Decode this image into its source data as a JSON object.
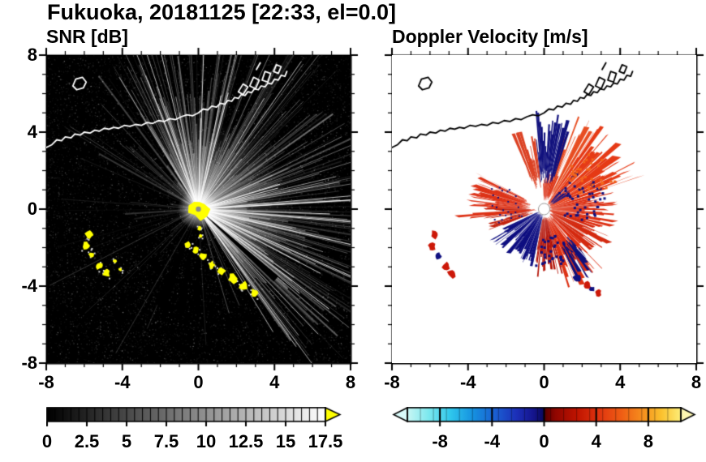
{
  "title": "Fukuoka, 20181125 [22:33, el=0.0]",
  "panels": {
    "snr": {
      "title": "SNR [dB]"
    },
    "doppler": {
      "title": "Doppler Velocity [m/s]"
    }
  },
  "axes": {
    "xlim": [
      -8,
      8
    ],
    "ylim": [
      -8,
      8
    ],
    "xtick_values": [
      -8,
      -4,
      0,
      4,
      8
    ],
    "xtick_labels": [
      "-8",
      "-4",
      "0",
      "4",
      "8"
    ],
    "ytick_values": [
      8,
      4,
      0,
      -4,
      -8
    ],
    "ytick_labels": [
      "8",
      "4",
      "0",
      "-4",
      "-8"
    ],
    "minor_tick_step": 1
  },
  "colorbars": {
    "snr": {
      "min": 0,
      "max": 17.5,
      "minor_step": 0.5,
      "tick_values": [
        0,
        2.5,
        5,
        7.5,
        10,
        12.5,
        15,
        17.5
      ],
      "tick_labels": [
        "0",
        "2.5",
        "5",
        "7.5",
        "10",
        "12.5",
        "15",
        "17.5"
      ],
      "colormap": [
        [
          0,
          "#000000"
        ],
        [
          1,
          "#ffffff"
        ]
      ],
      "arrow_color": "#ffff00"
    },
    "doppler": {
      "min": -10.5,
      "max": 10.5,
      "minor_step": 1,
      "tick_values": [
        -8,
        -4,
        0,
        4,
        8
      ],
      "tick_labels": [
        "-8",
        "-4",
        "0",
        "4",
        "8"
      ],
      "colormap": [
        [
          0,
          "#c9f6f4"
        ],
        [
          0.08,
          "#7ae8ee"
        ],
        [
          0.16,
          "#2ec6ec"
        ],
        [
          0.24,
          "#1691e0"
        ],
        [
          0.33,
          "#1b5ad0"
        ],
        [
          0.4,
          "#1c2fb8"
        ],
        [
          0.46,
          "#15158e"
        ],
        [
          0.495,
          "#0b0b62"
        ],
        [
          0.505,
          "#5d0000"
        ],
        [
          0.54,
          "#8f0600"
        ],
        [
          0.62,
          "#c01400"
        ],
        [
          0.7,
          "#e03510"
        ],
        [
          0.78,
          "#ef5c14"
        ],
        [
          0.86,
          "#f68f1e"
        ],
        [
          0.93,
          "#fbc22e"
        ],
        [
          1,
          "#fdee7a"
        ]
      ],
      "arrow_left_color": "#d9fbfa",
      "arrow_right_color": "#fdf6b0"
    }
  },
  "coastline": {
    "main": [
      [
        -8,
        3.2
      ],
      [
        -7.7,
        3.35
      ],
      [
        -7.45,
        3.6
      ],
      [
        -7.2,
        3.55
      ],
      [
        -7.0,
        3.75
      ],
      [
        -6.7,
        3.7
      ],
      [
        -6.5,
        3.9
      ],
      [
        -6.2,
        3.85
      ],
      [
        -6.0,
        4.0
      ],
      [
        -5.7,
        3.95
      ],
      [
        -5.45,
        4.1
      ],
      [
        -5.2,
        4.05
      ],
      [
        -4.95,
        4.2
      ],
      [
        -4.7,
        4.15
      ],
      [
        -4.45,
        4.25
      ],
      [
        -4.2,
        4.2
      ],
      [
        -3.9,
        4.35
      ],
      [
        -3.6,
        4.3
      ],
      [
        -3.3,
        4.4
      ],
      [
        -3.0,
        4.35
      ],
      [
        -2.7,
        4.5
      ],
      [
        -2.4,
        4.45
      ],
      [
        -2.1,
        4.6
      ],
      [
        -1.8,
        4.55
      ],
      [
        -1.5,
        4.7
      ],
      [
        -1.2,
        4.65
      ],
      [
        -0.9,
        4.8
      ],
      [
        -0.6,
        4.9
      ],
      [
        -0.3,
        4.85
      ],
      [
        0.0,
        5.0
      ],
      [
        0.25,
        5.2
      ],
      [
        0.5,
        5.15
      ],
      [
        0.7,
        5.35
      ],
      [
        0.95,
        5.3
      ],
      [
        1.15,
        5.5
      ],
      [
        1.4,
        5.45
      ],
      [
        1.55,
        5.65
      ],
      [
        1.75,
        5.6
      ],
      [
        1.9,
        5.8
      ],
      [
        2.1,
        5.75
      ],
      [
        2.25,
        5.95
      ],
      [
        2.45,
        5.9
      ],
      [
        2.6,
        6.1
      ],
      [
        2.8,
        6.05
      ],
      [
        2.95,
        6.25
      ],
      [
        3.15,
        6.2
      ],
      [
        3.3,
        6.4
      ],
      [
        3.5,
        6.35
      ],
      [
        3.65,
        6.55
      ],
      [
        3.85,
        6.5
      ],
      [
        4.0,
        6.75
      ],
      [
        4.2,
        6.7
      ],
      [
        4.35,
        6.95
      ],
      [
        4.55,
        6.9
      ],
      [
        4.65,
        7.15
      ]
    ],
    "piers": [
      [
        [
          2.1,
          6.1
        ],
        [
          2.35,
          6.5
        ],
        [
          2.6,
          6.35
        ],
        [
          2.35,
          5.95
        ]
      ],
      [
        [
          2.7,
          6.4
        ],
        [
          2.9,
          6.85
        ],
        [
          3.2,
          6.7
        ],
        [
          3.0,
          6.25
        ]
      ],
      [
        [
          3.35,
          6.7
        ],
        [
          3.5,
          7.15
        ],
        [
          3.8,
          7.05
        ],
        [
          3.65,
          6.6
        ]
      ],
      [
        [
          3.95,
          7.15
        ],
        [
          4.1,
          7.5
        ],
        [
          4.35,
          7.4
        ],
        [
          4.2,
          7.05
        ]
      ]
    ],
    "breakwater": [
      [
        3.05,
        7.25
      ],
      [
        3.25,
        7.6
      ]
    ],
    "island": [
      [
        -6.6,
        6.4
      ],
      [
        -6.45,
        6.75
      ],
      [
        -6.1,
        6.85
      ],
      [
        -5.9,
        6.6
      ],
      [
        -6.05,
        6.3
      ],
      [
        -6.4,
        6.2
      ]
    ]
  },
  "chart_data": [
    {
      "type": "heatmap",
      "title": "SNR [dB]",
      "xlabel": "",
      "ylabel": "",
      "xlim": [
        -8,
        8
      ],
      "ylim": [
        -8,
        8
      ],
      "value_range": [
        0,
        17.5
      ],
      "background": "#000000",
      "radar_center": [
        0,
        0
      ],
      "spoke_zones": [
        {
          "a0": -55,
          "a1": 122,
          "step": 0.7,
          "p": 1.0,
          "alpha": [
            0.06,
            0.42
          ],
          "len": [
            0.22,
            1.0
          ]
        },
        {
          "a0": 122,
          "a1": 155,
          "step": 1.2,
          "p": 0.75,
          "alpha": [
            0.05,
            0.28
          ],
          "len": [
            0.15,
            0.8
          ]
        },
        {
          "a0": 155,
          "a1": 205,
          "step": 1.6,
          "p": 0.5,
          "alpha": [
            0.04,
            0.2
          ],
          "len": [
            0.12,
            0.7
          ]
        },
        {
          "a0": 205,
          "a1": 305,
          "step": 2.2,
          "p": 0.28,
          "alpha": [
            0.05,
            0.3
          ],
          "len": [
            0.15,
            0.8
          ]
        },
        {
          "a0": 305,
          "a1": 360,
          "step": 1.0,
          "p": 0.8,
          "alpha": [
            0.05,
            0.3
          ],
          "len": [
            0.15,
            0.85
          ]
        }
      ],
      "bright_rays": [
        {
          "a0": -55,
          "a1": 122,
          "count": 60,
          "alpha": [
            0.35,
            0.95
          ],
          "len": [
            0.3,
            1.0
          ]
        },
        {
          "a0": 300,
          "a1": 350,
          "count": 10,
          "alpha": [
            0.3,
            0.65
          ],
          "len": [
            0.25,
            0.8
          ]
        }
      ],
      "shadow_wedges": [
        [
          246,
          252
        ],
        [
          258,
          262
        ],
        [
          268,
          271
        ],
        [
          316,
          320
        ]
      ],
      "clutter_color": "#ffff00",
      "clutter_blobs": [
        {
          "x": -0.55,
          "y": -1.85,
          "r": 0.16
        },
        {
          "x": -0.15,
          "y": -2.15,
          "r": 0.18
        },
        {
          "x": 0.25,
          "y": -2.5,
          "r": 0.2
        },
        {
          "x": 0.7,
          "y": -2.9,
          "r": 0.18
        },
        {
          "x": 1.2,
          "y": -3.2,
          "r": 0.22
        },
        {
          "x": 1.8,
          "y": -3.6,
          "r": 0.24
        },
        {
          "x": 2.4,
          "y": -4.0,
          "r": 0.24
        },
        {
          "x": 2.95,
          "y": -4.35,
          "r": 0.2
        },
        {
          "x": 0.05,
          "y": -1.0,
          "r": 0.1
        },
        {
          "x": 0.12,
          "y": -1.4,
          "r": 0.09
        },
        {
          "x": -5.75,
          "y": -1.35,
          "r": 0.2
        },
        {
          "x": -5.9,
          "y": -1.9,
          "r": 0.18
        },
        {
          "x": -5.6,
          "y": -2.4,
          "r": 0.16
        },
        {
          "x": -5.2,
          "y": -2.95,
          "r": 0.18
        },
        {
          "x": -4.85,
          "y": -3.35,
          "r": 0.2
        },
        {
          "x": -4.4,
          "y": -2.7,
          "r": 0.1
        },
        {
          "x": -4.1,
          "y": -3.15,
          "r": 0.09
        }
      ],
      "coast_color": "#ffffff"
    },
    {
      "type": "heatmap",
      "title": "Doppler Velocity [m/s]",
      "xlabel": "",
      "ylabel": "",
      "xlim": [
        -8,
        8
      ],
      "ylim": [
        -8,
        8
      ],
      "value_range": [
        -10.5,
        10.5
      ],
      "background": "#ffffff",
      "radar_center": [
        0,
        0
      ],
      "velocity_wedges": [
        {
          "a0": -20,
          "a1": 18,
          "r0": 0.35,
          "r1": 3.0,
          "color": "#dd2f12"
        },
        {
          "a0": 18,
          "a1": 58,
          "r0": 0.35,
          "r1": 4.3,
          "color": "#e63a16"
        },
        {
          "a0": 58,
          "a1": 74,
          "r0": 0.9,
          "r1": 4.6,
          "color": "#e84e22"
        },
        {
          "a0": 66,
          "a1": 92,
          "r0": 0.6,
          "r1": 1.7,
          "color": "#d92c12"
        },
        {
          "a0": 72,
          "a1": 97,
          "r0": 1.8,
          "r1": 4.2,
          "color": "#12127e"
        },
        {
          "a0": 97,
          "a1": 114,
          "r0": 1.5,
          "r1": 3.5,
          "color": "#dc4224"
        },
        {
          "a0": 152,
          "a1": 179,
          "r0": 1.0,
          "r1": 3.3,
          "color": "#dd3318"
        },
        {
          "a0": 179,
          "a1": 201,
          "r0": 0.8,
          "r1": 2.6,
          "color": "#c42410"
        },
        {
          "a0": 183,
          "a1": 187,
          "r0": 0.5,
          "r1": 3.9,
          "color": "#dd3014"
        },
        {
          "a0": 205,
          "a1": 259,
          "r0": 0.4,
          "r1": 2.5,
          "color": "#0e0e80"
        },
        {
          "a0": 259,
          "a1": 287,
          "r0": 0.5,
          "r1": 2.9,
          "color": "#b41408"
        },
        {
          "a0": 287,
          "a1": 317,
          "r0": 0.6,
          "r1": 3.6,
          "color": "#dd2f12"
        },
        {
          "a0": 317,
          "a1": 342,
          "r0": 0.5,
          "r1": 3.0,
          "color": "#d42a10"
        },
        {
          "a0": 295,
          "a1": 312,
          "r0": 2.5,
          "r1": 3.6,
          "color": "#10107c"
        },
        {
          "a0": 30,
          "a1": 48,
          "r0": 0.5,
          "r1": 1.4,
          "color": "#141486"
        }
      ],
      "velocity_speckles": [
        {
          "a0": -15,
          "a1": 55,
          "r0": 1.0,
          "r1": 3.2,
          "count": 50,
          "color": "#10107e",
          "size": 3
        },
        {
          "a0": 260,
          "a1": 300,
          "r0": 1.4,
          "r1": 3.0,
          "count": 35,
          "color": "#0e0e80",
          "size": 3
        },
        {
          "a0": 150,
          "a1": 200,
          "r0": 1.2,
          "r1": 3.0,
          "count": 25,
          "color": "#10107e",
          "size": 2
        },
        {
          "a0": 20,
          "a1": 60,
          "r0": 2.0,
          "r1": 4.0,
          "count": 40,
          "color": "#f3661a",
          "size": 3
        }
      ],
      "velocity_blobs": [
        {
          "x": -5.75,
          "y": -1.35,
          "r": 0.22,
          "color": "#cc1808"
        },
        {
          "x": -5.9,
          "y": -1.95,
          "r": 0.18,
          "color": "#cc1808"
        },
        {
          "x": -5.55,
          "y": -2.45,
          "r": 0.16,
          "color": "#101080"
        },
        {
          "x": -5.15,
          "y": -2.95,
          "r": 0.2,
          "color": "#cc1808"
        },
        {
          "x": -4.85,
          "y": -3.35,
          "r": 0.22,
          "color": "#cc1808"
        },
        {
          "x": 1.7,
          "y": -3.6,
          "r": 0.2,
          "color": "#101080"
        },
        {
          "x": 2.25,
          "y": -3.95,
          "r": 0.22,
          "color": "#cc1808"
        },
        {
          "x": 2.5,
          "y": -4.15,
          "r": 0.14,
          "color": "#101080"
        },
        {
          "x": 2.85,
          "y": -4.35,
          "r": 0.18,
          "color": "#cc1808"
        }
      ],
      "coast_color": "#000000"
    }
  ]
}
